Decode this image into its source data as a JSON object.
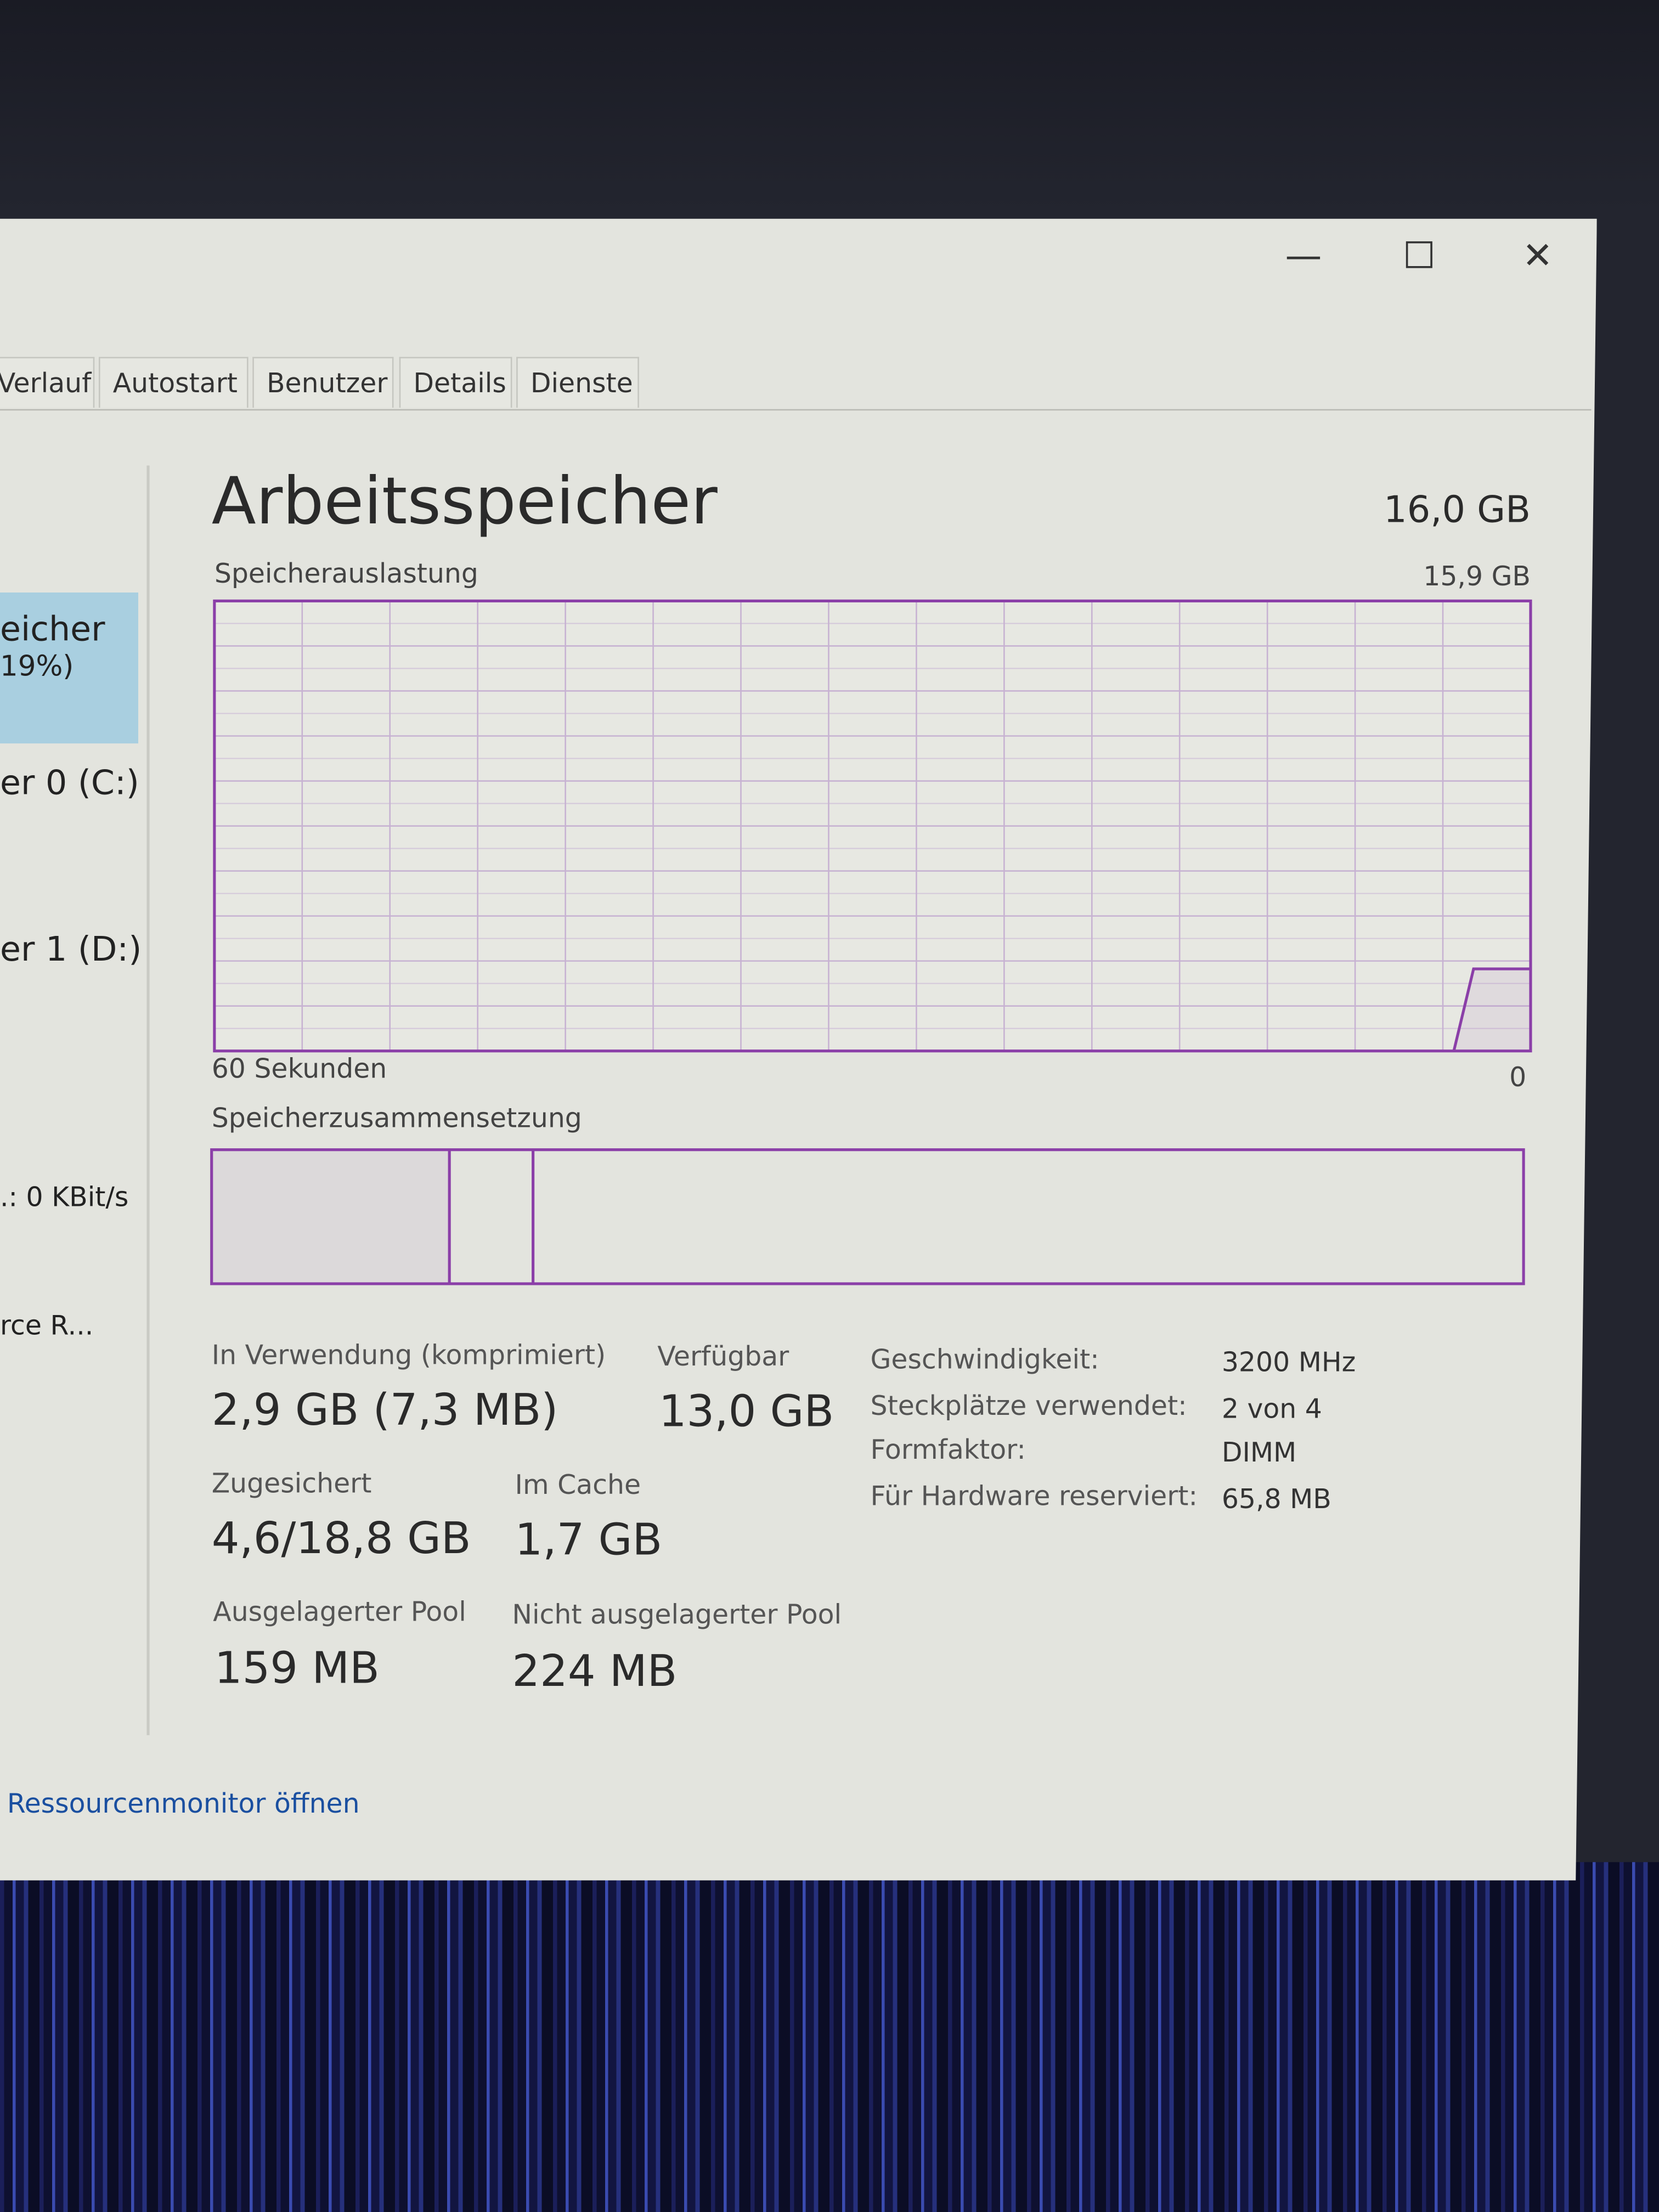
{
  "window_controls": {
    "minimize": "—",
    "maximize": "☐",
    "close": "✕"
  },
  "tabs": [
    {
      "label": "Verlauf"
    },
    {
      "label": "Autostart"
    },
    {
      "label": "Benutzer"
    },
    {
      "label": "Details"
    },
    {
      "label": "Dienste"
    }
  ],
  "sidebar": {
    "items": [
      {
        "line1": "eicher",
        "line2": "19%)",
        "selected": true
      },
      {
        "line1": "er 0 (C:)"
      },
      {
        "line1": "er 1 (D:)"
      },
      {
        "line1": ".: 0 KBit/s"
      },
      {
        "line1": "rce R..."
      }
    ]
  },
  "main": {
    "title": "Arbeitsspeicher",
    "total": "16,0 GB",
    "usage_label": "Speicherauslastung",
    "usage_max": "15,9 GB",
    "time_left": "60 Sekunden",
    "time_right": "0",
    "composition_label": "Speicherzusammensetzung",
    "stats": {
      "in_use_label": "In Verwendung (komprimiert)",
      "in_use": "2,9 GB (7,3 MB)",
      "available_label": "Verfügbar",
      "available": "13,0 GB",
      "committed_label": "Zugesichert",
      "committed": "4,6/18,8 GB",
      "cached_label": "Im Cache",
      "cached": "1,7 GB",
      "paged_label": "Ausgelagerter Pool",
      "paged": "159 MB",
      "nonpaged_label": "Nicht ausgelagerter Pool",
      "nonpaged": "224 MB"
    },
    "info": [
      {
        "label": "Geschwindigkeit:",
        "value": "3200 MHz"
      },
      {
        "label": "Steckplätze verwendet:",
        "value": "2 von 4"
      },
      {
        "label": "Formfaktor:",
        "value": "DIMM"
      },
      {
        "label": "Für Hardware reserviert:",
        "value": "65,8 MB"
      }
    ],
    "composition_gb": {
      "in_use": 2.9,
      "modified": 1.7,
      "total": 16.0
    }
  },
  "footer": {
    "link": "Ressourcenmonitor öffnen"
  },
  "colors": {
    "accent": "#8b3fa8",
    "selected_bg": "#a9cfe0",
    "link": "#1a4fa0"
  },
  "chart_data": {
    "type": "line",
    "xlabel": "60 Sekunden",
    "xlim": [
      60,
      0
    ],
    "ylim": [
      0,
      15.9
    ],
    "grid": true,
    "points": [
      {
        "x": 3.5,
        "y": 0
      },
      {
        "x": 2.6,
        "y": 2.9
      },
      {
        "x": 0,
        "y": 2.9
      }
    ]
  }
}
